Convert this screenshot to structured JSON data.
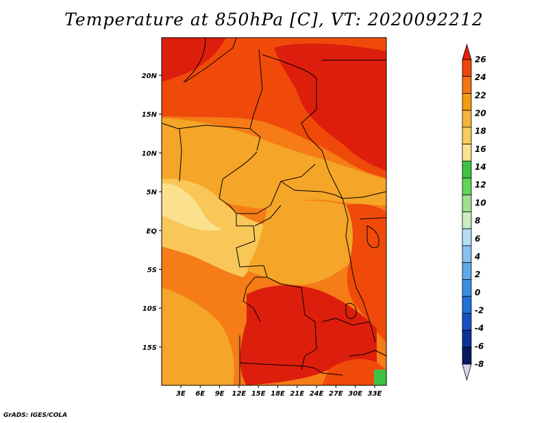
{
  "title": "Temperature at 850hPa [C], VT: 2020092212",
  "footer": "GrADS: IGES/COLA",
  "lat_labels": [
    "20N",
    "15N",
    "10N",
    "5N",
    "EQ",
    "5S",
    "10S",
    "15S"
  ],
  "lon_labels": [
    "3E",
    "6E",
    "9E",
    "12E",
    "15E",
    "18E",
    "21E",
    "24E",
    "27E",
    "30E",
    "33E"
  ],
  "colorbar": {
    "levels": [
      "26",
      "24",
      "22",
      "20",
      "18",
      "16",
      "14",
      "12",
      "10",
      "8",
      "6",
      "4",
      "2",
      "0",
      "-2",
      "-4",
      "-6",
      "-8"
    ],
    "colors": [
      "#e8200f",
      "#f0460a",
      "#f57416",
      "#f59b0e",
      "#f5b43a",
      "#f8cd5e",
      "#fbe38f",
      "#3ec244",
      "#63d65a",
      "#9ee08e",
      "#c9efc0",
      "#b6dcf6",
      "#84c1f0",
      "#5ea8e9",
      "#3c8fe0",
      "#2171d9",
      "#1650c2",
      "#0c3199",
      "#061a5c",
      "#d5d5ee"
    ]
  },
  "map_colors": {
    "hot": "#dd1e0c",
    "warm": "#f04a0a",
    "mid": "#f57c17",
    "mild": "#f5a527",
    "cool": "#f8c758",
    "pale": "#fbe08d",
    "green": "#3ec244"
  }
}
